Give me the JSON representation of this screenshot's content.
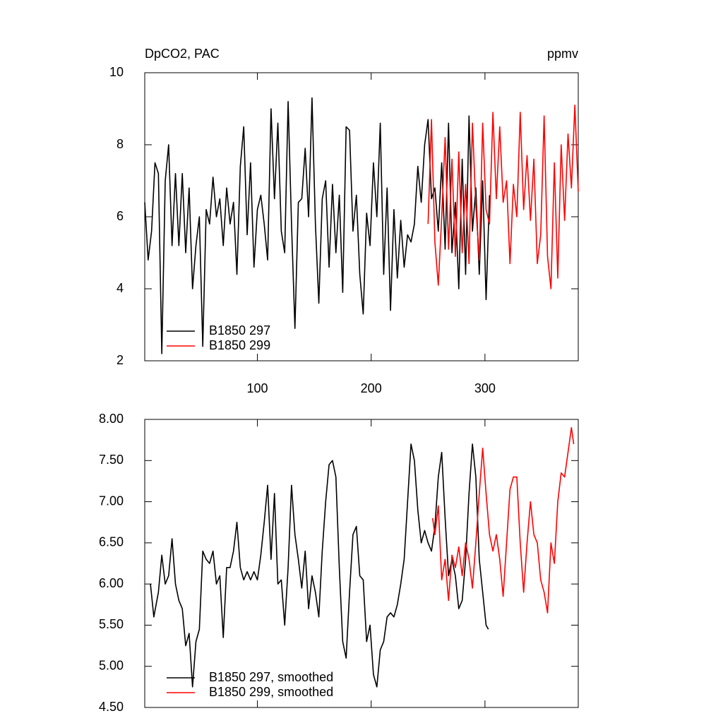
{
  "chart_data": [
    {
      "type": "line",
      "title": "DpCO2, PAC",
      "units": "ppmv",
      "xlim": [
        1,
        382
      ],
      "xticks": [
        100,
        200,
        300
      ],
      "ylim": [
        2,
        10
      ],
      "yticks": [
        2,
        4,
        6,
        8,
        10
      ],
      "legend": "lower left",
      "series": [
        {
          "name": "B1850 297",
          "color": "#000000",
          "x": [
            1,
            4,
            7,
            10,
            13,
            16,
            19,
            22,
            25,
            28,
            31,
            34,
            37,
            40,
            43,
            46,
            49,
            52,
            55,
            58,
            61,
            64,
            67,
            70,
            73,
            76,
            79,
            82,
            85,
            88,
            91,
            94,
            97,
            100,
            103,
            106,
            109,
            112,
            115,
            118,
            121,
            124,
            127,
            130,
            133,
            136,
            139,
            142,
            145,
            148,
            151,
            154,
            157,
            160,
            163,
            166,
            169,
            172,
            175,
            178,
            181,
            184,
            187,
            190,
            193,
            196,
            199,
            202,
            205,
            208,
            211,
            214,
            217,
            220,
            223,
            226,
            229,
            232,
            235,
            238,
            241,
            244,
            247,
            250,
            253,
            256,
            259,
            262,
            265,
            268,
            271,
            274,
            277,
            280,
            283,
            286,
            289,
            292,
            295,
            298,
            301,
            304
          ],
          "values": [
            6.4,
            4.8,
            5.6,
            7.5,
            7.2,
            2.2,
            7.0,
            8.0,
            5.2,
            7.2,
            5.2,
            7.2,
            5.0,
            6.8,
            4.0,
            5.2,
            6.0,
            2.4,
            6.2,
            5.8,
            7.1,
            6.0,
            6.5,
            5.2,
            6.8,
            5.8,
            6.4,
            4.4,
            7.4,
            8.5,
            5.5,
            7.5,
            4.6,
            6.2,
            6.6,
            5.8,
            4.8,
            9.0,
            6.5,
            8.6,
            5.6,
            5.0,
            9.2,
            5.8,
            2.9,
            6.4,
            6.5,
            7.9,
            6.0,
            9.3,
            5.8,
            3.6,
            6.5,
            7.0,
            4.6,
            6.9,
            5.0,
            6.6,
            3.9,
            8.5,
            8.4,
            5.6,
            6.6,
            4.4,
            3.3,
            6.1,
            5.2,
            7.5,
            6.0,
            8.6,
            4.4,
            6.8,
            3.4,
            6.2,
            4.3,
            5.9,
            4.6,
            5.5,
            5.3,
            5.8,
            7.4,
            6.4,
            8.0,
            8.7,
            6.5,
            6.8,
            5.6,
            7.5,
            5.1,
            8.6,
            5.0,
            6.4,
            4.0,
            7.6,
            4.4,
            8.8,
            5.6,
            6.8,
            4.4,
            7.0,
            3.7,
            6.6
          ]
        },
        {
          "name": "B1850 299",
          "color": "#ff0000",
          "x": [
            250,
            253,
            256,
            259,
            262,
            265,
            268,
            271,
            274,
            277,
            280,
            283,
            286,
            289,
            292,
            295,
            298,
            301,
            304,
            307,
            310,
            313,
            316,
            319,
            322,
            325,
            328,
            331,
            334,
            337,
            340,
            343,
            346,
            349,
            352,
            355,
            358,
            361,
            364,
            367,
            370,
            373,
            376,
            379,
            382
          ],
          "values": [
            5.8,
            8.7,
            5.3,
            4.1,
            6.0,
            8.2,
            5.1,
            7.6,
            4.9,
            7.8,
            5.0,
            6.9,
            4.7,
            8.6,
            6.3,
            4.8,
            8.6,
            6.2,
            5.8,
            8.9,
            6.5,
            8.5,
            6.4,
            7.0,
            4.7,
            6.9,
            6.0,
            8.9,
            6.2,
            7.7,
            5.9,
            7.6,
            4.7,
            5.5,
            8.8,
            4.9,
            4.0,
            7.5,
            4.3,
            8.0,
            5.9,
            8.3,
            6.8,
            9.1,
            6.7
          ]
        }
      ]
    },
    {
      "type": "line",
      "xlim": [
        1,
        382
      ],
      "xticks": [
        100,
        200,
        300
      ],
      "ylim": [
        4.5,
        8
      ],
      "yticks": [
        {
          "value": 4.5,
          "label": "4.50"
        },
        {
          "value": 5,
          "label": "5.00"
        },
        {
          "value": 5.5,
          "label": "5.50"
        },
        {
          "value": 6,
          "label": "6.00"
        },
        {
          "value": 6.5,
          "label": "6.50"
        },
        {
          "value": 7,
          "label": "7.00"
        },
        {
          "value": 7.5,
          "label": "7.50"
        },
        {
          "value": 8,
          "label": "8.00"
        }
      ],
      "legend": "lower left",
      "series": [
        {
          "name": "B1850 297, smoothed",
          "color": "#000000",
          "x": [
            6,
            9,
            13,
            16,
            19,
            22,
            25,
            28,
            31,
            34,
            37,
            40,
            43,
            46,
            49,
            52,
            55,
            58,
            61,
            64,
            67,
            70,
            73,
            76,
            79,
            82,
            85,
            88,
            91,
            94,
            97,
            100,
            103,
            106,
            109,
            112,
            115,
            118,
            121,
            124,
            127,
            130,
            133,
            136,
            139,
            142,
            145,
            148,
            151,
            154,
            157,
            160,
            163,
            166,
            169,
            172,
            175,
            178,
            181,
            184,
            187,
            190,
            193,
            196,
            199,
            202,
            205,
            208,
            211,
            214,
            217,
            220,
            223,
            226,
            229,
            232,
            235,
            238,
            241,
            244,
            247,
            250,
            253,
            256,
            259,
            262,
            265,
            268,
            271,
            274,
            277,
            280,
            283,
            286,
            289,
            292,
            295,
            298,
            301,
            303
          ],
          "values": [
            6.0,
            5.6,
            5.9,
            6.35,
            6.0,
            6.1,
            6.55,
            6.0,
            5.8,
            5.7,
            5.25,
            5.4,
            4.75,
            5.3,
            5.45,
            6.4,
            6.3,
            6.25,
            6.4,
            6.0,
            6.1,
            5.35,
            6.2,
            6.2,
            6.4,
            6.75,
            6.2,
            6.05,
            6.15,
            6.05,
            6.15,
            6.05,
            6.35,
            6.75,
            7.2,
            6.3,
            7.1,
            6.0,
            6.05,
            5.5,
            6.2,
            7.2,
            6.6,
            6.3,
            5.95,
            6.4,
            5.7,
            6.1,
            5.9,
            5.6,
            6.4,
            7.0,
            7.45,
            7.5,
            7.3,
            6.2,
            5.3,
            5.1,
            5.9,
            6.6,
            6.7,
            6.1,
            6.05,
            5.3,
            5.5,
            4.9,
            4.75,
            5.2,
            5.3,
            5.6,
            5.65,
            5.6,
            5.75,
            6.0,
            6.3,
            7.0,
            7.7,
            7.5,
            6.9,
            6.5,
            6.65,
            6.5,
            6.4,
            6.7,
            7.3,
            7.6,
            6.8,
            6.1,
            6.3,
            6.1,
            5.7,
            5.8,
            6.3,
            7.1,
            7.7,
            7.3,
            6.3,
            5.9,
            5.5,
            5.45
          ]
        },
        {
          "name": "B1850 299, smoothed",
          "color": "#ff0000",
          "x": [
            254,
            256,
            259,
            262,
            265,
            268,
            271,
            274,
            277,
            280,
            283,
            286,
            289,
            292,
            295,
            298,
            301,
            304,
            307,
            310,
            313,
            316,
            319,
            322,
            325,
            328,
            331,
            334,
            337,
            340,
            343,
            346,
            349,
            352,
            355,
            358,
            361,
            364,
            367,
            370,
            373,
            376,
            378
          ],
          "values": [
            6.8,
            6.6,
            6.95,
            6.05,
            6.3,
            5.8,
            6.35,
            6.2,
            6.45,
            6.1,
            6.5,
            6.3,
            5.95,
            6.5,
            7.1,
            7.65,
            7.1,
            6.6,
            6.4,
            6.6,
            6.3,
            5.85,
            6.5,
            7.15,
            7.3,
            7.3,
            6.5,
            5.9,
            6.5,
            7.0,
            6.6,
            6.5,
            6.05,
            5.9,
            5.65,
            6.5,
            6.25,
            7.0,
            7.35,
            7.3,
            7.6,
            7.9,
            7.7
          ]
        }
      ]
    }
  ]
}
